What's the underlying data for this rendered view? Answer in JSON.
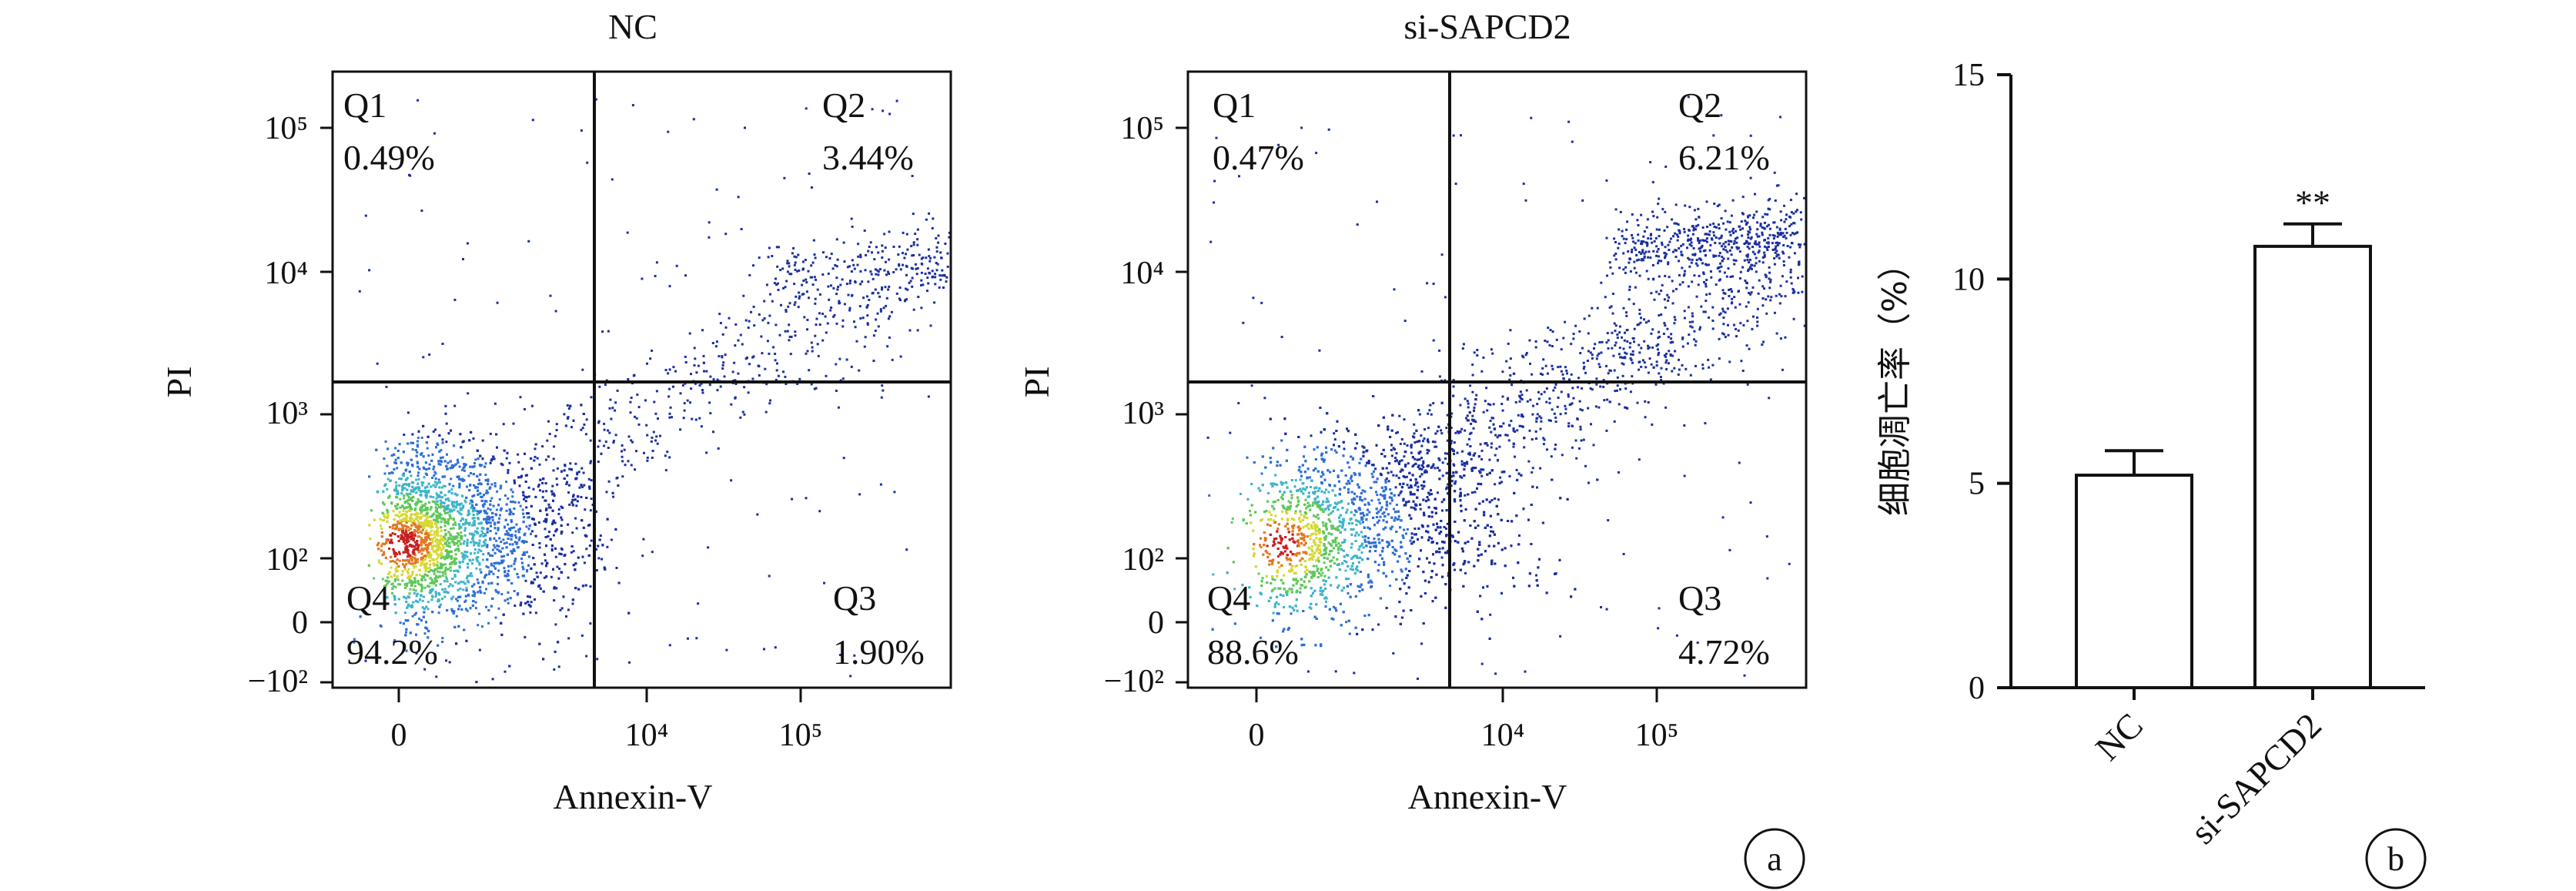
{
  "chart_data": [
    {
      "type": "scatter",
      "title": "NC",
      "xlabel": "Annexin-V",
      "ylabel": "PI",
      "x_scale": "biexponential",
      "y_scale": "biexponential",
      "x_ticks": [
        "0",
        "10⁴",
        "10⁵"
      ],
      "y_ticks": [
        "10⁵",
        "10⁴",
        "10³",
        "10²",
        "0",
        "−10²"
      ],
      "quadrants": [
        {
          "label": "Q1",
          "percent": "0.49%"
        },
        {
          "label": "Q2",
          "percent": "3.44%"
        },
        {
          "label": "Q3",
          "percent": "1.90%"
        },
        {
          "label": "Q4",
          "percent": "94.2%"
        }
      ],
      "colormap": [
        "#1a2f9e",
        "#2f6fd6",
        "#3fb4c8",
        "#5ec85a",
        "#d6d832",
        "#e07a22",
        "#c81e1e"
      ]
    },
    {
      "type": "scatter",
      "title": "si-SAPCD2",
      "xlabel": "Annexin-V",
      "ylabel": "PI",
      "x_scale": "biexponential",
      "y_scale": "biexponential",
      "x_ticks": [
        "0",
        "10⁴",
        "10⁵"
      ],
      "y_ticks": [
        "10⁵",
        "10⁴",
        "10³",
        "10²",
        "0",
        "−10²"
      ],
      "quadrants": [
        {
          "label": "Q1",
          "percent": "0.47%"
        },
        {
          "label": "Q2",
          "percent": "6.21%"
        },
        {
          "label": "Q3",
          "percent": "4.72%"
        },
        {
          "label": "Q4",
          "percent": "88.6%"
        }
      ],
      "colormap": [
        "#1a2f9e",
        "#2f6fd6",
        "#3fb4c8",
        "#5ec85a",
        "#d6d832",
        "#e07a22",
        "#c81e1e"
      ]
    },
    {
      "type": "bar",
      "categories": [
        "NC",
        "si-SAPCD2"
      ],
      "values": [
        5.2,
        10.8
      ],
      "errors": [
        0.6,
        0.55
      ],
      "significance": [
        "",
        "**"
      ],
      "ylabel": "细胞凋亡率（%）",
      "ylim": [
        0,
        15
      ],
      "yticks": [
        0,
        5,
        10,
        15
      ]
    }
  ],
  "panel_labels": [
    "a",
    "b"
  ]
}
